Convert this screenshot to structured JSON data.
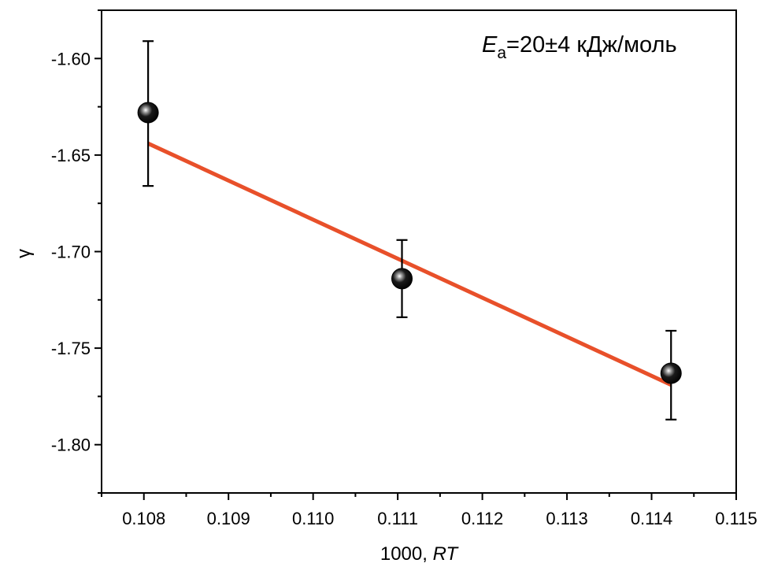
{
  "chart_data": {
    "type": "scatter",
    "title": "",
    "xlabel_prefix": "1000, ",
    "xlabel_italic": "RT",
    "ylabel": "γ",
    "xlim": [
      0.1075,
      0.115
    ],
    "ylim": [
      -1.825,
      -1.575
    ],
    "x_ticks": [
      0.108,
      0.109,
      0.11,
      0.111,
      0.112,
      0.113,
      0.114,
      0.115
    ],
    "x_tick_labels": [
      "0.108",
      "0.109",
      "0.110",
      "0.111",
      "0.112",
      "0.113",
      "0.114",
      "0.115"
    ],
    "y_ticks": [
      -1.6,
      -1.65,
      -1.7,
      -1.75,
      -1.8
    ],
    "y_tick_labels": [
      "-1.60",
      "-1.65",
      "-1.70",
      "-1.75",
      "-1.80"
    ],
    "series": [
      {
        "name": "data",
        "points": [
          {
            "x": 0.10805,
            "y": -1.628,
            "err_low": -1.666,
            "err_high": -1.591
          },
          {
            "x": 0.11105,
            "y": -1.714,
            "err_low": -1.734,
            "err_high": -1.694
          },
          {
            "x": 0.11423,
            "y": -1.763,
            "err_low": -1.787,
            "err_high": -1.741
          }
        ],
        "marker_color": "#000000"
      }
    ],
    "fit_line": {
      "x": [
        0.10805,
        0.11423
      ],
      "y": [
        -1.644,
        -1.769
      ],
      "color": "#e8502a"
    },
    "annotation": {
      "E": "E",
      "sub": "a",
      "rest": "=20±4 кДж/моль"
    }
  }
}
